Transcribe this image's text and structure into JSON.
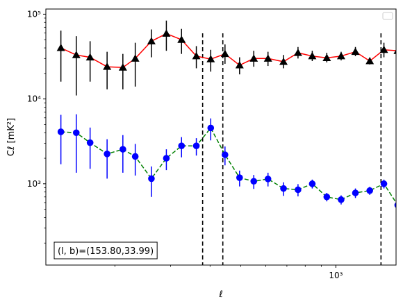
{
  "chart_data": {
    "type": "scatter",
    "title": "",
    "xlabel": "ℓ",
    "ylabel": "Cℓ  [mK²]",
    "xscale": "log",
    "yscale": "log",
    "xlim": [
      121,
      1550
    ],
    "ylim": [
      110,
      115000
    ],
    "xticks": [
      {
        "value": 1000,
        "label": "10³"
      }
    ],
    "yticks": [
      {
        "value": 1000,
        "label": "10³"
      },
      {
        "value": 10000,
        "label": "10⁴"
      },
      {
        "value": 100000,
        "label": "10⁵"
      }
    ],
    "grid": false,
    "legend": {
      "placement": "top-right",
      "entries": []
    },
    "vlines": [
      379,
      439,
      1389
    ],
    "annotation": {
      "text": "(l, b)=(153.80,33.99)",
      "placement": "bottom-left"
    },
    "series": [
      {
        "color": "#000000",
        "line_color": "#ff0000",
        "linestyle": "solid",
        "marker": "triangle",
        "points": [
          {
            "x": 135,
            "y": 40000,
            "lo": 16000,
            "hi": 64000
          },
          {
            "x": 151,
            "y": 33000,
            "lo": 11000,
            "hi": 55000
          },
          {
            "x": 167,
            "y": 31000,
            "lo": 16000,
            "hi": 48000
          },
          {
            "x": 189,
            "y": 24000,
            "lo": 13000,
            "hi": 36000
          },
          {
            "x": 212,
            "y": 23500,
            "lo": 13000,
            "hi": 34000
          },
          {
            "x": 232,
            "y": 30000,
            "lo": 14000,
            "hi": 46000
          },
          {
            "x": 261,
            "y": 48000,
            "lo": 31000,
            "hi": 66000
          },
          {
            "x": 291,
            "y": 59000,
            "lo": 37000,
            "hi": 84000
          },
          {
            "x": 325,
            "y": 50000,
            "lo": 34000,
            "hi": 67000
          },
          {
            "x": 362,
            "y": 32000,
            "lo": 23000,
            "hi": 42000
          },
          {
            "x": 402,
            "y": 29500,
            "lo": 21000,
            "hi": 38000
          },
          {
            "x": 446,
            "y": 34000,
            "lo": 26000,
            "hi": 44000
          },
          {
            "x": 496,
            "y": 25000,
            "lo": 19500,
            "hi": 31000
          },
          {
            "x": 550,
            "y": 30000,
            "lo": 24000,
            "hi": 37000
          },
          {
            "x": 610,
            "y": 30000,
            "lo": 24500,
            "hi": 36000
          },
          {
            "x": 683,
            "y": 27500,
            "lo": 23000,
            "hi": 33000
          },
          {
            "x": 759,
            "y": 35000,
            "lo": 30000,
            "hi": 41000
          },
          {
            "x": 842,
            "y": 32000,
            "lo": 28000,
            "hi": 37000
          },
          {
            "x": 936,
            "y": 30500,
            "lo": 27000,
            "hi": 35000
          },
          {
            "x": 1039,
            "y": 32000,
            "lo": 28500,
            "hi": 36000
          },
          {
            "x": 1153,
            "y": 36000,
            "lo": 32000,
            "hi": 41000
          },
          {
            "x": 1280,
            "y": 28000,
            "lo": 25500,
            "hi": 30500
          },
          {
            "x": 1419,
            "y": 38000,
            "lo": 31000,
            "hi": 46000
          },
          {
            "x": 1569,
            "y": 37000,
            "lo": 30500,
            "hi": 45000
          },
          {
            "x": 1739,
            "y": 50000,
            "lo": 33000,
            "hi": 66000
          }
        ]
      },
      {
        "color": "#0000ff",
        "line_color": "#008000",
        "linestyle": "dashed",
        "marker": "circle",
        "points": [
          {
            "x": 135,
            "y": 4100,
            "lo": 1700,
            "hi": 6500
          },
          {
            "x": 151,
            "y": 4000,
            "lo": 1350,
            "hi": 6600
          },
          {
            "x": 167,
            "y": 3050,
            "lo": 1500,
            "hi": 4600
          },
          {
            "x": 189,
            "y": 2250,
            "lo": 1150,
            "hi": 3350
          },
          {
            "x": 212,
            "y": 2550,
            "lo": 1350,
            "hi": 3750
          },
          {
            "x": 232,
            "y": 2100,
            "lo": 1250,
            "hi": 2950
          },
          {
            "x": 261,
            "y": 1150,
            "lo": 700,
            "hi": 1600
          },
          {
            "x": 291,
            "y": 2000,
            "lo": 1450,
            "hi": 2550
          },
          {
            "x": 325,
            "y": 2800,
            "lo": 2050,
            "hi": 3550
          },
          {
            "x": 362,
            "y": 2800,
            "lo": 2150,
            "hi": 3450
          },
          {
            "x": 402,
            "y": 4550,
            "lo": 3250,
            "hi": 5900
          },
          {
            "x": 446,
            "y": 2200,
            "lo": 1650,
            "hi": 2750
          },
          {
            "x": 496,
            "y": 1180,
            "lo": 930,
            "hi": 1430
          },
          {
            "x": 550,
            "y": 1070,
            "lo": 870,
            "hi": 1270
          },
          {
            "x": 610,
            "y": 1140,
            "lo": 930,
            "hi": 1350
          },
          {
            "x": 683,
            "y": 880,
            "lo": 720,
            "hi": 1040
          },
          {
            "x": 759,
            "y": 850,
            "lo": 710,
            "hi": 990
          },
          {
            "x": 842,
            "y": 1000,
            "lo": 880,
            "hi": 1120
          },
          {
            "x": 936,
            "y": 700,
            "lo": 620,
            "hi": 780
          },
          {
            "x": 1039,
            "y": 650,
            "lo": 570,
            "hi": 730
          },
          {
            "x": 1153,
            "y": 780,
            "lo": 680,
            "hi": 880
          },
          {
            "x": 1280,
            "y": 830,
            "lo": 740,
            "hi": 920
          },
          {
            "x": 1419,
            "y": 1000,
            "lo": 880,
            "hi": 1120
          },
          {
            "x": 1569,
            "y": 560,
            "lo": 460,
            "hi": 660
          },
          {
            "x": 1739,
            "y": 240,
            "lo": 160,
            "hi": 330
          }
        ]
      }
    ]
  }
}
